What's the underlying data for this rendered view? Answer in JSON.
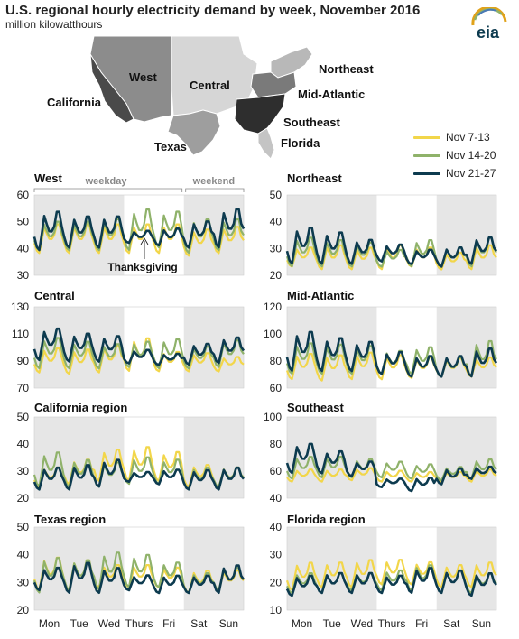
{
  "header": {
    "title": "U.S. regional hourly electricity demand by week, November 2016",
    "units": "million kilowatthours",
    "logo_text": "eia"
  },
  "map": {
    "regions": [
      {
        "name": "West",
        "color": "#8c8c8c"
      },
      {
        "name": "Central",
        "color": "#d6d6d6"
      },
      {
        "name": "California",
        "color": "#4a4a4a"
      },
      {
        "name": "Texas",
        "color": "#9e9e9e"
      },
      {
        "name": "Northeast",
        "color": "#b8b8b8"
      },
      {
        "name": "Mid-Atlantic",
        "color": "#7a7a7a"
      },
      {
        "name": "Southeast",
        "color": "#2e2e2e"
      },
      {
        "name": "Florida",
        "color": "#c4c4c4"
      }
    ],
    "midwest_color": "#e4e4e4"
  },
  "legend": [
    {
      "label": "Nov 7-13",
      "color": "#f2d64a"
    },
    {
      "label": "Nov 14-20",
      "color": "#8fb26a"
    },
    {
      "label": "Nov 21-27",
      "color": "#0d3b4f"
    }
  ],
  "annotations": {
    "weekday": "weekday",
    "weekend": "weekend",
    "thanksgiving": "Thanksgiving"
  },
  "days": [
    "Mon",
    "Tue",
    "Wed",
    "Thurs",
    "Fri",
    "Sat",
    "Sun"
  ],
  "chart_data": [
    {
      "type": "line",
      "title": "West",
      "ylim": [
        30,
        60
      ],
      "yticks": [
        30,
        40,
        50,
        60
      ],
      "series": [
        {
          "name": "Nov 7-13",
          "profile": [
            [
              38,
              50
            ],
            [
              38,
              50
            ],
            [
              38,
              50
            ],
            [
              38,
              50
            ],
            [
              38,
              50
            ],
            [
              37,
              48
            ],
            [
              38,
              49
            ]
          ]
        },
        {
          "name": "Nov 14-20",
          "profile": [
            [
              39,
              51
            ],
            [
              39,
              51
            ],
            [
              39,
              52
            ],
            [
              39,
              56
            ],
            [
              40,
              55
            ],
            [
              38,
              52
            ],
            [
              39,
              52
            ]
          ]
        },
        {
          "name": "Nov 21-27",
          "profile": [
            [
              39,
              55
            ],
            [
              40,
              53
            ],
            [
              40,
              53
            ],
            [
              42,
              47
            ],
            [
              41,
              48
            ],
            [
              40,
              51
            ],
            [
              40,
              56
            ]
          ]
        }
      ]
    },
    {
      "type": "line",
      "title": "Northeast",
      "ylim": [
        20,
        50
      ],
      "yticks": [
        20,
        30,
        40,
        50
      ],
      "series": [
        {
          "name": "Nov 7-13",
          "profile": [
            [
              23,
              31
            ],
            [
              22,
              32
            ],
            [
              22,
              31
            ],
            [
              22,
              32
            ],
            [
              23,
              31
            ],
            [
              22,
              29
            ],
            [
              22,
              32
            ]
          ]
        },
        {
          "name": "Nov 14-20",
          "profile": [
            [
              23,
              35
            ],
            [
              23,
              34
            ],
            [
              23,
              33
            ],
            [
              23,
              30
            ],
            [
              23,
              34
            ],
            [
              23,
              31
            ],
            [
              23,
              35
            ]
          ]
        },
        {
          "name": "Nov 21-27",
          "profile": [
            [
              24,
              39
            ],
            [
              24,
              37
            ],
            [
              24,
              34
            ],
            [
              25,
              32
            ],
            [
              24,
              30
            ],
            [
              23,
              31
            ],
            [
              24,
              35
            ]
          ]
        }
      ]
    },
    {
      "type": "line",
      "title": "Central",
      "ylim": [
        70,
        130
      ],
      "yticks": [
        70,
        90,
        110,
        130
      ],
      "series": [
        {
          "name": "Nov 7-13",
          "profile": [
            [
              81,
              101
            ],
            [
              80,
              100
            ],
            [
              81,
              103
            ],
            [
              82,
              109
            ],
            [
              82,
              98
            ],
            [
              82,
              97
            ],
            [
              82,
              94
            ]
          ]
        },
        {
          "name": "Nov 14-20",
          "profile": [
            [
              84,
              109
            ],
            [
              84,
              106
            ],
            [
              84,
              104
            ],
            [
              85,
              106
            ],
            [
              84,
              108
            ],
            [
              84,
              102
            ],
            [
              85,
              107
            ]
          ]
        },
        {
          "name": "Nov 21-27",
          "profile": [
            [
              90,
              116
            ],
            [
              89,
              112
            ],
            [
              89,
              110
            ],
            [
              88,
              99
            ],
            [
              87,
              96
            ],
            [
              87,
              104
            ],
            [
              88,
              109
            ]
          ]
        }
      ]
    },
    {
      "type": "line",
      "title": "Mid-Atlantic",
      "ylim": [
        60,
        120
      ],
      "yticks": [
        60,
        80,
        100,
        120
      ],
      "series": [
        {
          "name": "Nov 7-13",
          "profile": [
            [
              66,
              87
            ],
            [
              65,
              86
            ],
            [
              66,
              88
            ],
            [
              66,
              86
            ],
            [
              67,
              84
            ],
            [
              68,
              83
            ],
            [
              68,
              84
            ]
          ]
        },
        {
          "name": "Nov 14-20",
          "profile": [
            [
              70,
              95
            ],
            [
              70,
              94
            ],
            [
              70,
              93
            ],
            [
              70,
              89
            ],
            [
              70,
              92
            ],
            [
              68,
              84
            ],
            [
              68,
              97
            ]
          ]
        },
        {
          "name": "Nov 21-27",
          "profile": [
            [
              72,
              104
            ],
            [
              72,
              99
            ],
            [
              72,
              96
            ],
            [
              70,
              88
            ],
            [
              68,
              85
            ],
            [
              68,
              85
            ],
            [
              68,
              91
            ]
          ]
        }
      ]
    },
    {
      "type": "line",
      "title": "California region",
      "ylim": [
        20,
        50
      ],
      "yticks": [
        20,
        30,
        40,
        50
      ],
      "series": [
        {
          "name": "Nov 7-13",
          "profile": [
            [
              24,
              32
            ],
            [
              25,
              35
            ],
            [
              26,
              39
            ],
            [
              26,
              40
            ],
            [
              26,
              38
            ],
            [
              24,
              33
            ],
            [
              24,
              32
            ]
          ]
        },
        {
          "name": "Nov 14-20",
          "profile": [
            [
              24,
              38
            ],
            [
              24,
              35
            ],
            [
              24,
              34
            ],
            [
              25,
              36
            ],
            [
              25,
              35
            ],
            [
              23,
              32
            ],
            [
              24,
              32
            ]
          ]
        },
        {
          "name": "Nov 21-27",
          "profile": [
            [
              23,
              32
            ],
            [
              23,
              33
            ],
            [
              24,
              35
            ],
            [
              26,
              30
            ],
            [
              25,
              31
            ],
            [
              23,
              31
            ],
            [
              23,
              32
            ]
          ]
        }
      ]
    },
    {
      "type": "line",
      "title": "Southeast",
      "ylim": [
        40,
        100
      ],
      "yticks": [
        40,
        60,
        80,
        100
      ],
      "series": [
        {
          "name": "Nov 7-13",
          "profile": [
            [
              52,
              62
            ],
            [
              52,
              62
            ],
            [
              53,
              63
            ],
            [
              52,
              61
            ],
            [
              52,
              60
            ],
            [
              52,
              60
            ],
            [
              52,
              62
            ]
          ]
        },
        {
          "name": "Nov 14-20",
          "profile": [
            [
              54,
              72
            ],
            [
              55,
              72
            ],
            [
              55,
              70
            ],
            [
              55,
              68
            ],
            [
              54,
              66
            ],
            [
              53,
              64
            ],
            [
              54,
              70
            ]
          ]
        },
        {
          "name": "Nov 21-27",
          "profile": [
            [
              58,
              82
            ],
            [
              58,
              76
            ],
            [
              56,
              68
            ],
            [
              48,
              55
            ],
            [
              45,
              56
            ],
            [
              50,
              63
            ],
            [
              54,
              64
            ]
          ]
        }
      ]
    },
    {
      "type": "line",
      "title": "Texas region",
      "ylim": [
        20,
        50
      ],
      "yticks": [
        20,
        30,
        40,
        50
      ],
      "series": [
        {
          "name": "Nov 7-13",
          "profile": [
            [
              27,
              40
            ],
            [
              27,
              39
            ],
            [
              28,
              37
            ],
            [
              28,
              37
            ],
            [
              28,
              36
            ],
            [
              26,
              35
            ],
            [
              27,
              35
            ]
          ]
        },
        {
          "name": "Nov 14-20",
          "profile": [
            [
              26,
              40
            ],
            [
              27,
              39
            ],
            [
              27,
              42
            ],
            [
              28,
              41
            ],
            [
              28,
              38
            ],
            [
              26,
              34
            ],
            [
              27,
              36
            ]
          ]
        },
        {
          "name": "Nov 21-27",
          "profile": [
            [
              27,
              36
            ],
            [
              26,
              38
            ],
            [
              26,
              36
            ],
            [
              27,
              33
            ],
            [
              26,
              33
            ],
            [
              26,
              33
            ],
            [
              26,
              37
            ]
          ]
        }
      ]
    },
    {
      "type": "line",
      "title": "Florida region",
      "ylim": [
        10,
        40
      ],
      "yticks": [
        10,
        20,
        30,
        40
      ],
      "series": [
        {
          "name": "Nov 7-13",
          "profile": [
            [
              17,
              28
            ],
            [
              18,
              28
            ],
            [
              18,
              29
            ],
            [
              19,
              29
            ],
            [
              19,
              28
            ],
            [
              18,
              27
            ],
            [
              18,
              28
            ]
          ]
        },
        {
          "name": "Nov 14-20",
          "profile": [
            [
              16,
              24
            ],
            [
              16,
              24
            ],
            [
              17,
              24
            ],
            [
              17,
              25
            ],
            [
              17,
              27
            ],
            [
              16,
              25
            ],
            [
              16,
              24
            ]
          ]
        },
        {
          "name": "Nov 21-27",
          "profile": [
            [
              15,
              23
            ],
            [
              16,
              24
            ],
            [
              16,
              24
            ],
            [
              16,
              23
            ],
            [
              16,
              26
            ],
            [
              16,
              25
            ],
            [
              15,
              24
            ]
          ]
        }
      ]
    }
  ]
}
